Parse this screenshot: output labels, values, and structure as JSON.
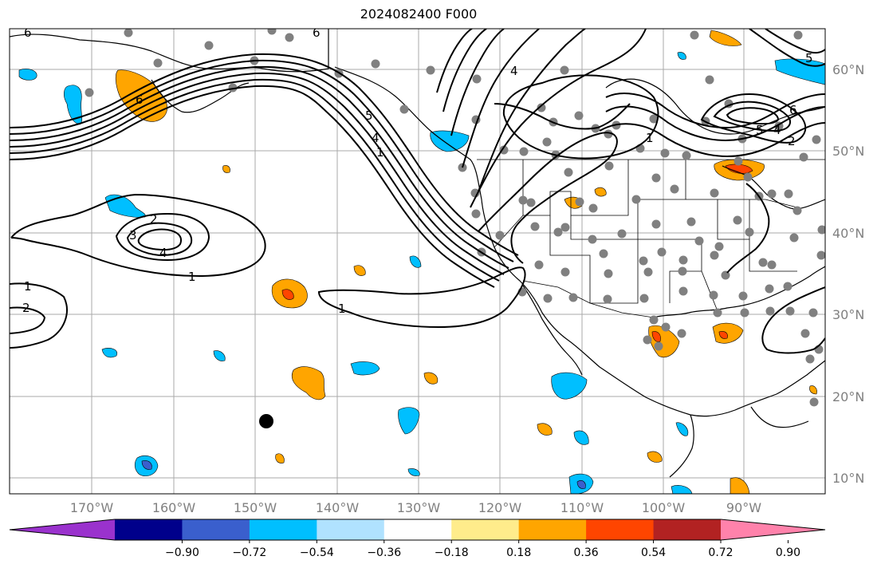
{
  "title": "2024082400 F000",
  "lon_labels": [
    "170°W",
    "160°W",
    "150°W",
    "140°W",
    "130°W",
    "120°W",
    "110°W",
    "100°W",
    "90°W"
  ],
  "lat_labels": [
    "60°N",
    "50°N",
    "40°N",
    "30°N",
    "20°N",
    "10°N"
  ],
  "colorbar": {
    "colors": [
      "#9a32cd",
      "#00008b",
      "#3a5fcd",
      "#00bfff",
      "#b0e2ff",
      "#ffffff",
      "#ffec8b",
      "#ffa500",
      "#ff4500",
      "#b22222",
      "#ff82ab"
    ],
    "tick_labels": [
      "−0.90",
      "−0.72",
      "−0.54",
      "−0.36",
      "−0.18",
      "0.18",
      "0.36",
      "0.54",
      "0.72",
      "0.90"
    ]
  },
  "contour_labels": {
    "label_6_nw": "6",
    "label_6_top": "6",
    "label_6_alaska": "6",
    "label_5_coast": "5",
    "label_4_coast": "4",
    "label_1_coast": "1",
    "label_4_canada": "4",
    "label_2_pacific": "2",
    "label_3_pacific": "3",
    "label_4_pacific": "4",
    "label_1_pacific": "1",
    "label_1_west": "1",
    "label_2_west": "2",
    "label_1_ridge": "1",
    "label_1_us": "1",
    "label_5_hudson": "5",
    "label_4_hudson": "4",
    "label_2_hudson": "2",
    "label_6_hudson": "6",
    "label_5_ne": "5"
  }
}
